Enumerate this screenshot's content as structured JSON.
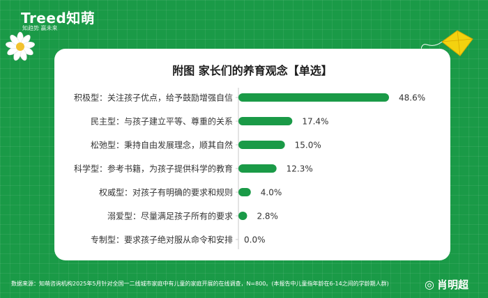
{
  "brand": {
    "logo": "Treed知萌",
    "slogan": "知趋势  赢未来"
  },
  "chart_data": {
    "type": "bar",
    "orientation": "horizontal",
    "title": "附图  家长们的养育观念【单选】",
    "categories": [
      "积极型：关注孩子优点，给予鼓励增强自信",
      "民主型：与孩子建立平等、尊重的关系",
      "松弛型：秉持自由发展理念，顺其自然",
      "科学型：参考书籍，为孩子提供科学的教育",
      "权威型：对孩子有明确的要求和规则",
      "溺爱型：尽量满足孩子所有的要求",
      "专制型：要求孩子绝对服从命令和安排"
    ],
    "values": [
      48.6,
      17.4,
      15.0,
      12.3,
      4.0,
      2.8,
      0.0
    ],
    "value_labels": [
      "48.6%",
      "17.4%",
      "15.0%",
      "12.3%",
      "4.0%",
      "2.8%",
      "0.0%"
    ],
    "bar_color": "#1a9a47",
    "xlim": [
      0,
      48.6
    ],
    "grid": false
  },
  "footer": {
    "source": "数据来源：知萌咨询机构2025年5月针对全国一二线城市家庭中有儿童的家庭开展的在线调查，N=800。(本报告中儿童指年龄在6-14之间的学龄期人群)"
  },
  "watermark": {
    "author": "肖明超"
  }
}
